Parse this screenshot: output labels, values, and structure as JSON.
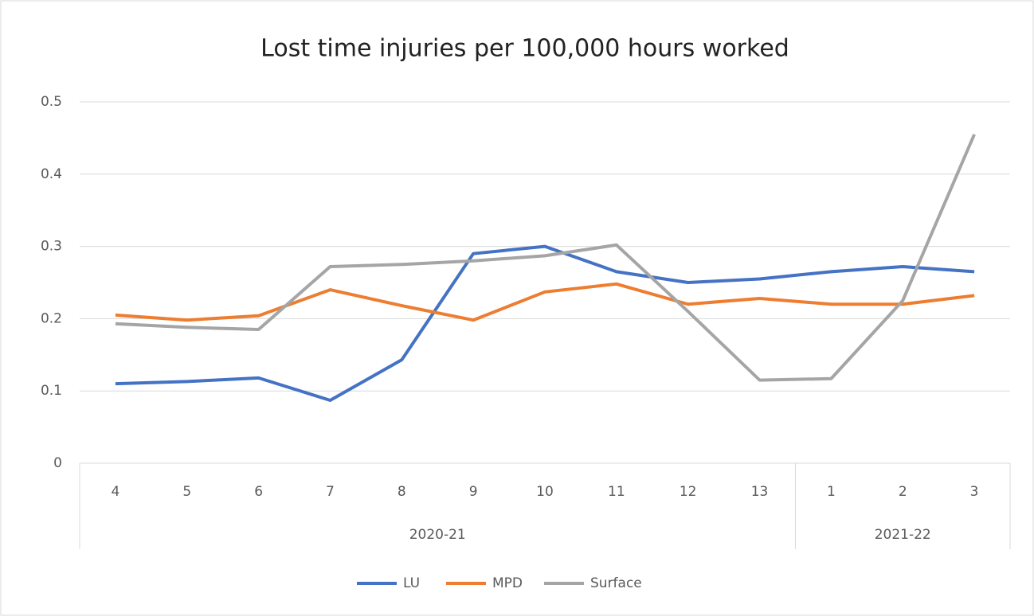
{
  "chart_data": {
    "type": "line",
    "title": "Lost time injuries per 100,000 hours worked",
    "category_groups": [
      {
        "name": "2020-21",
        "categories": [
          "4",
          "5",
          "6",
          "7",
          "8",
          "9",
          "10",
          "11",
          "12",
          "13"
        ]
      },
      {
        "name": "2021-22",
        "categories": [
          "1",
          "2",
          "3"
        ]
      }
    ],
    "series": [
      {
        "name": "LU",
        "color": "#4472c4",
        "values": [
          0.11,
          0.113,
          0.118,
          0.087,
          0.143,
          0.29,
          0.3,
          0.265,
          0.25,
          0.255,
          0.265,
          0.272,
          0.265
        ]
      },
      {
        "name": "MPD",
        "color": "#ed7d31",
        "values": [
          0.205,
          0.198,
          0.204,
          0.24,
          0.218,
          0.198,
          0.237,
          0.248,
          0.22,
          0.228,
          0.22,
          0.22,
          0.232
        ]
      },
      {
        "name": "Surface",
        "color": "#a5a5a5",
        "values": [
          0.193,
          0.188,
          0.185,
          0.272,
          0.275,
          0.28,
          0.287,
          0.302,
          0.21,
          0.115,
          0.117,
          0.225,
          0.455
        ]
      }
    ],
    "ylim": [
      0,
      0.5
    ],
    "yticks": [
      0,
      0.1,
      0.2,
      0.3,
      0.4,
      0.5
    ],
    "grid": true,
    "legend": "bottom"
  }
}
